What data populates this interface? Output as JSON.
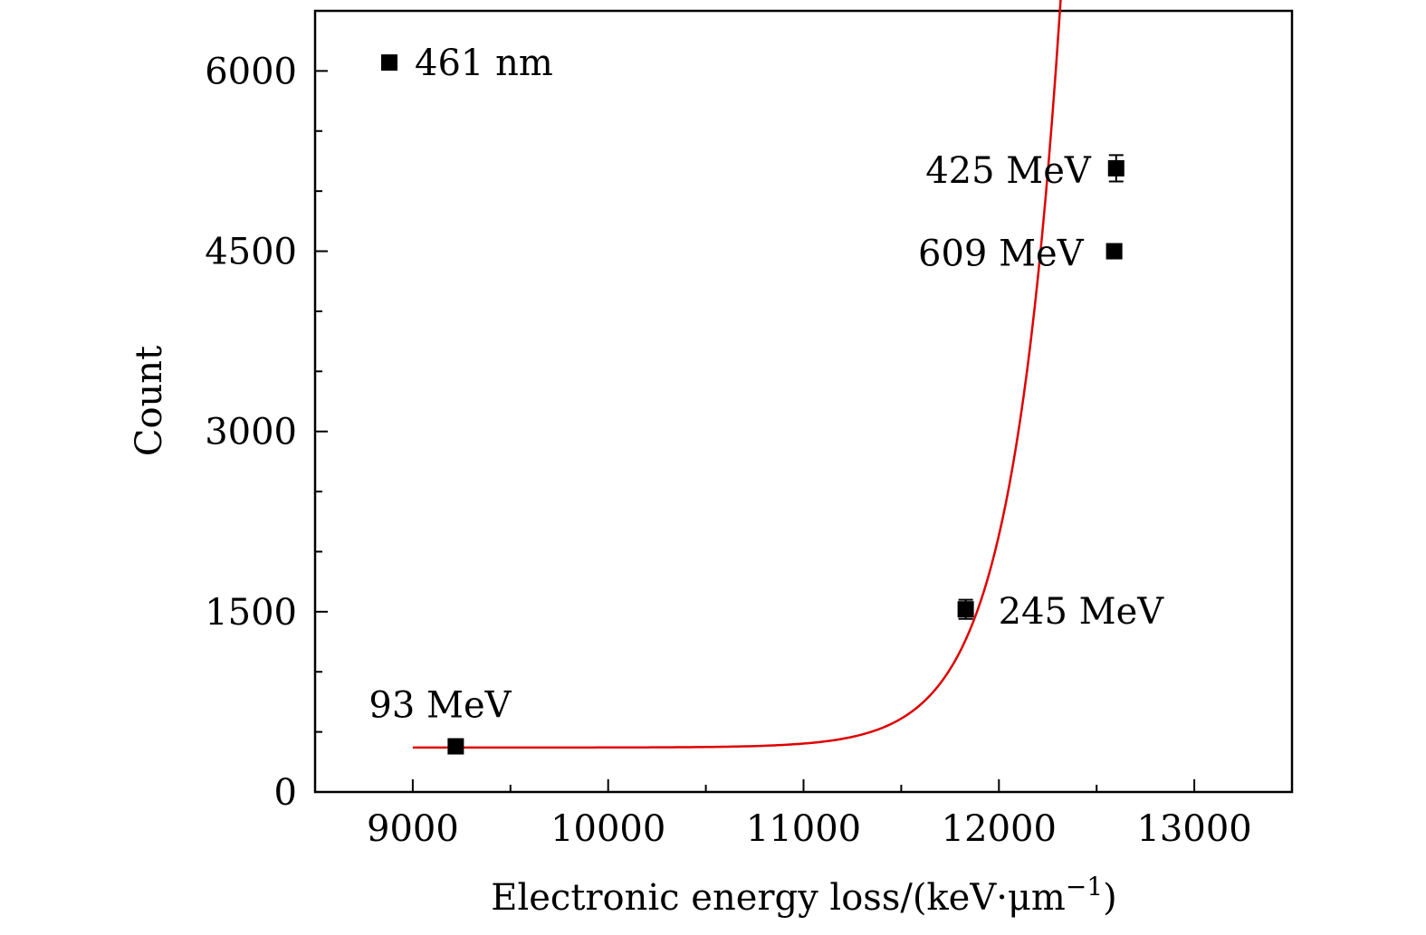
{
  "chart_data": {
    "type": "scatter",
    "title": "",
    "xlabel": "Electronic energy loss/(keV·μm",
    "xlabel_superscript": "−1",
    "xlabel_close": ")",
    "ylabel": "Count",
    "xlim": [
      8500,
      13500
    ],
    "ylim": [
      0,
      6500
    ],
    "xticks": [
      9000,
      10000,
      11000,
      12000,
      13000
    ],
    "yticks": [
      0,
      1500,
      3000,
      4500,
      6000
    ],
    "xminor": [
      9500,
      10500,
      11500,
      12500
    ],
    "yminor": [
      500,
      1000,
      2000,
      2500,
      3500,
      4000,
      5000,
      5500
    ],
    "grid": false,
    "points": [
      {
        "label": "93 MeV",
        "x": 9220,
        "y": 380,
        "err": 50
      },
      {
        "label": "245 MeV",
        "x": 11830,
        "y": 1520,
        "err": 80
      },
      {
        "label": "609 MeV",
        "x": 12590,
        "y": 4500,
        "err": 40
      },
      {
        "label": "425 MeV",
        "x": 12600,
        "y": 5190,
        "err": 110
      }
    ],
    "legend_marker": {
      "label": "461 nm",
      "x": 8880,
      "y": 6070
    },
    "fit": {
      "type": "exponential",
      "y0": 370,
      "A": 0.01133,
      "t": 250.9,
      "x0": 9000,
      "x_start": 9000,
      "x_end": 12700
    },
    "colors": {
      "fit": "#e00000",
      "marker": "#000000",
      "axis": "#000000"
    }
  }
}
